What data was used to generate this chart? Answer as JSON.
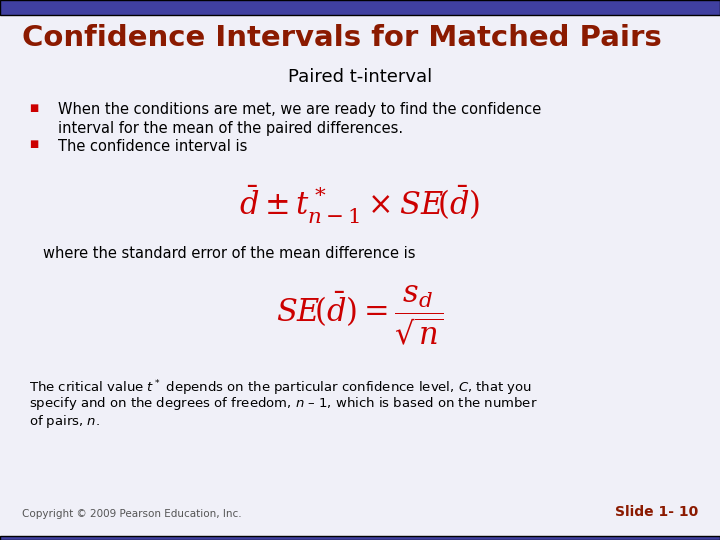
{
  "title": "Confidence Intervals for Matched Pairs",
  "subtitle": "Paired t-interval",
  "title_color": "#8B1A00",
  "subtitle_color": "#000000",
  "background_color": "#F0F0F8",
  "header_bar_color": "#4040A0",
  "bullet_color": "#CC0000",
  "text_color": "#000000",
  "formula_color": "#CC0000",
  "bullet1_line1": "When the conditions are met, we are ready to find the confidence",
  "bullet1_line2": "interval for the mean of the paired differences.",
  "bullet2": "The confidence interval is",
  "formula1": "$\\bar{d} \\pm t^*_{n-1} \\times SE\\!\\left(\\bar{d}\\right)$",
  "where_text": "where the standard error of the mean difference is",
  "formula2": "$SE\\!\\left(\\bar{d}\\right)= \\dfrac{s_d}{\\sqrt{n}}$",
  "paragraph_line1": "The critical value $t^*$ depends on the particular confidence level, $C$, that you",
  "paragraph_line2": "specify and on the degrees of freedom, $n$ – 1, which is based on the number",
  "paragraph_line3": "of pairs, $n$.",
  "copyright": "Copyright © 2009 Pearson Education, Inc.",
  "slide_num": "Slide 1- 10",
  "slide_num_color": "#8B1A00"
}
